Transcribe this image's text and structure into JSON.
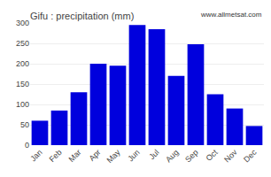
{
  "chart_data": {
    "type": "bar",
    "title": "Gifu : precipitation (mm)",
    "categories": [
      "Jan",
      "Feb",
      "Mar",
      "Apr",
      "May",
      "Jun",
      "Jul",
      "Aug",
      "Sep",
      "Oct",
      "Nov",
      "Dec"
    ],
    "values": [
      60,
      85,
      130,
      200,
      195,
      295,
      285,
      170,
      248,
      125,
      90,
      47
    ],
    "color": "#0000dd",
    "ylim": [
      0,
      300
    ],
    "yticks": [
      0,
      50,
      100,
      150,
      200,
      250,
      300
    ],
    "grid": true,
    "annotations": [
      "www.allmetsat.com"
    ]
  }
}
